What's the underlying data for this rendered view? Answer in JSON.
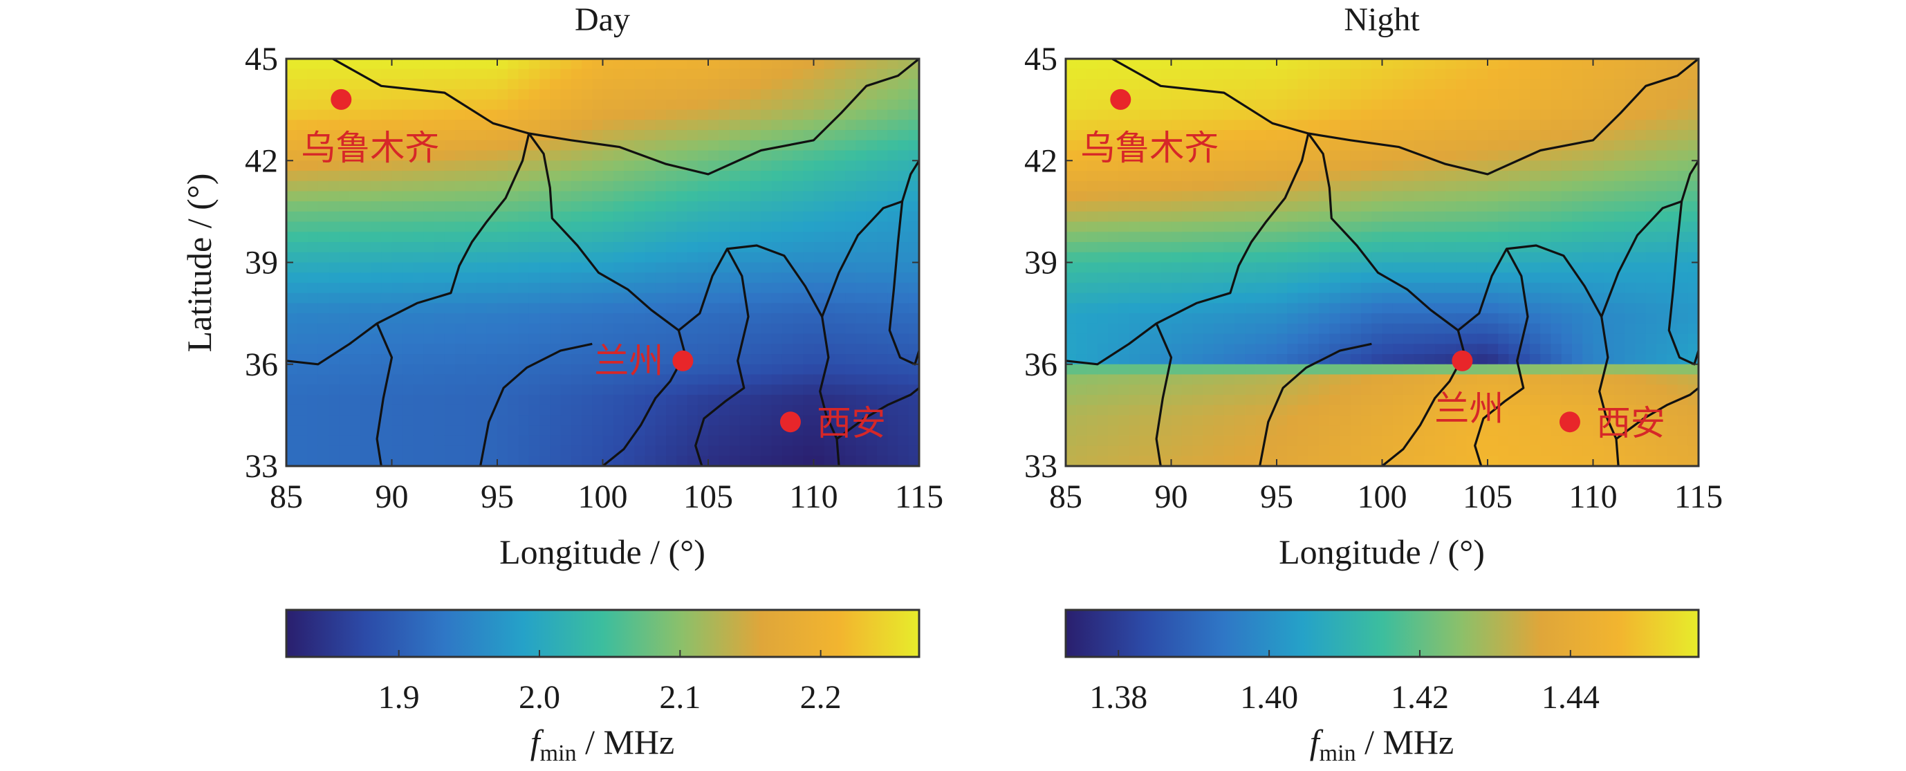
{
  "chart_data": [
    {
      "type": "heatmap",
      "title": "Day",
      "xlabel": "Longitude / (°)",
      "ylabel": "Latitude / (°)",
      "xlim": [
        85,
        115
      ],
      "ylim": [
        33,
        45
      ],
      "xticks": [
        "85",
        "90",
        "95",
        "100",
        "105",
        "110",
        "115"
      ],
      "yticks": [
        "33",
        "36",
        "39",
        "42",
        "45"
      ],
      "colorbar": {
        "label_italic": "f",
        "label_sub": "min",
        "label_rest": " / MHz",
        "range": [
          1.82,
          2.27
        ],
        "ticks": [
          "1.9",
          "2.0",
          "2.1",
          "2.2"
        ]
      },
      "field_rows": [
        {
          "lat": 45,
          "values": [
            [
              85,
              2.27
            ],
            [
              95,
              2.27
            ],
            [
              100,
              2.21
            ],
            [
              105,
              2.2
            ],
            [
              110,
              2.16
            ],
            [
              115,
              2.12
            ]
          ]
        },
        {
          "lat": 43.5,
          "values": [
            [
              85,
              2.24
            ],
            [
              95,
              2.22
            ],
            [
              100,
              2.17
            ],
            [
              105,
              2.15
            ],
            [
              110,
              2.12
            ],
            [
              115,
              2.08
            ]
          ]
        },
        {
          "lat": 42,
          "values": [
            [
              85,
              2.17
            ],
            [
              95,
              2.14
            ],
            [
              100,
              2.11
            ],
            [
              105,
              2.08
            ],
            [
              110,
              2.05
            ],
            [
              115,
              2.02
            ]
          ]
        },
        {
          "lat": 40.5,
          "values": [
            [
              85,
              2.08
            ],
            [
              95,
              2.07
            ],
            [
              100,
              2.05
            ],
            [
              105,
              2.02
            ],
            [
              110,
              2.0
            ],
            [
              115,
              1.98
            ]
          ]
        },
        {
          "lat": 39,
          "values": [
            [
              85,
              2.01
            ],
            [
              95,
              2.0
            ],
            [
              100,
              1.99
            ],
            [
              105,
              1.97
            ],
            [
              110,
              1.96
            ],
            [
              115,
              1.96
            ]
          ]
        },
        {
          "lat": 37.5,
          "values": [
            [
              85,
              1.95
            ],
            [
              95,
              1.94
            ],
            [
              100,
              1.93
            ],
            [
              105,
              1.92
            ],
            [
              110,
              1.91
            ],
            [
              115,
              1.92
            ]
          ]
        },
        {
          "lat": 36,
          "values": [
            [
              85,
              1.93
            ],
            [
              95,
              1.92
            ],
            [
              100,
              1.91
            ],
            [
              105,
              1.9
            ],
            [
              110,
              1.88
            ],
            [
              115,
              1.89
            ]
          ]
        },
        {
          "lat": 35,
          "values": [
            [
              85,
              1.92
            ],
            [
              95,
              1.91
            ],
            [
              100,
              1.89
            ],
            [
              105,
              1.86
            ],
            [
              110,
              1.84
            ],
            [
              115,
              1.86
            ]
          ]
        },
        {
          "lat": 33,
          "values": [
            [
              85,
              1.92
            ],
            [
              95,
              1.91
            ],
            [
              100,
              1.88
            ],
            [
              105,
              1.84
            ],
            [
              110,
              1.82
            ],
            [
              115,
              1.85
            ]
          ]
        }
      ]
    },
    {
      "type": "heatmap",
      "title": "Night",
      "xlabel": "Longitude / (°)",
      "ylabel": "",
      "xlim": [
        85,
        115
      ],
      "ylim": [
        33,
        45
      ],
      "xticks": [
        "85",
        "90",
        "95",
        "100",
        "105",
        "110",
        "115"
      ],
      "yticks": [
        "33",
        "36",
        "39",
        "42",
        "45"
      ],
      "colorbar": {
        "label_italic": "f",
        "label_sub": "min",
        "label_rest": " / MHz",
        "range": [
          1.373,
          1.457
        ],
        "ticks": [
          "1.38",
          "1.40",
          "1.42",
          "1.44"
        ]
      },
      "field_rows": [
        {
          "lat": 45,
          "values": [
            [
              85,
              1.457
            ],
            [
              95,
              1.456
            ],
            [
              100,
              1.452
            ],
            [
              105,
              1.448
            ],
            [
              110,
              1.443
            ],
            [
              115,
              1.438
            ]
          ]
        },
        {
          "lat": 43.5,
          "values": [
            [
              85,
              1.454
            ],
            [
              95,
              1.451
            ],
            [
              100,
              1.447
            ],
            [
              105,
              1.444
            ],
            [
              110,
              1.44
            ],
            [
              115,
              1.434
            ]
          ]
        },
        {
          "lat": 42,
          "values": [
            [
              85,
              1.446
            ],
            [
              95,
              1.441
            ],
            [
              100,
              1.437
            ],
            [
              105,
              1.434
            ],
            [
              110,
              1.43
            ],
            [
              115,
              1.425
            ]
          ]
        },
        {
          "lat": 40.5,
          "values": [
            [
              85,
              1.432
            ],
            [
              95,
              1.428
            ],
            [
              100,
              1.424
            ],
            [
              105,
              1.422
            ],
            [
              110,
              1.418
            ],
            [
              115,
              1.415
            ]
          ]
        },
        {
          "lat": 39,
          "values": [
            [
              85,
              1.415
            ],
            [
              95,
              1.412
            ],
            [
              100,
              1.408
            ],
            [
              105,
              1.408
            ],
            [
              110,
              1.406
            ],
            [
              115,
              1.405
            ]
          ]
        },
        {
          "lat": 37.5,
          "values": [
            [
              85,
              1.405
            ],
            [
              95,
              1.4
            ],
            [
              100,
              1.392
            ],
            [
              105,
              1.392
            ],
            [
              110,
              1.398
            ],
            [
              115,
              1.402
            ]
          ]
        },
        {
          "lat": 36,
          "values": [
            [
              85,
              1.405
            ],
            [
              95,
              1.392
            ],
            [
              100,
              1.381
            ],
            [
              105,
              1.376
            ],
            [
              110,
              1.397
            ],
            [
              115,
              1.405
            ]
          ]
        },
        {
          "lat": 35.8,
          "values": [
            [
              85,
              1.425
            ],
            [
              95,
              1.43
            ],
            [
              100,
              1.436
            ],
            [
              105,
              1.44
            ],
            [
              110,
              1.437
            ],
            [
              115,
              1.432
            ]
          ]
        },
        {
          "lat": 34.5,
          "values": [
            [
              85,
              1.43
            ],
            [
              95,
              1.435
            ],
            [
              100,
              1.44
            ],
            [
              105,
              1.446
            ],
            [
              110,
              1.443
            ],
            [
              115,
              1.437
            ]
          ]
        },
        {
          "lat": 33,
          "values": [
            [
              85,
              1.432
            ],
            [
              95,
              1.437
            ],
            [
              100,
              1.442
            ],
            [
              105,
              1.447
            ],
            [
              110,
              1.445
            ],
            [
              115,
              1.44
            ]
          ]
        }
      ]
    }
  ],
  "cities": [
    {
      "name": "乌鲁木齐",
      "lon": 87.6,
      "lat": 43.8
    },
    {
      "name": "兰州",
      "lon": 103.8,
      "lat": 36.1
    },
    {
      "name": "西安",
      "lon": 108.9,
      "lat": 34.3
    }
  ],
  "colors": {
    "marker": "#e8262a",
    "label": "#d62728",
    "colormap": [
      "#2a1f6e",
      "#2c4ba8",
      "#2f77c6",
      "#25a2c8",
      "#3cbe9e",
      "#8cc06a",
      "#dfa63a",
      "#f2b52f",
      "#e7ec2b"
    ]
  },
  "borders": [
    [
      [
        87.2,
        45
      ],
      [
        89.5,
        44.2
      ],
      [
        92.5,
        44.0
      ],
      [
        94.8,
        43.1
      ],
      [
        96.5,
        42.8
      ],
      [
        98.5,
        42.6
      ],
      [
        100.8,
        42.4
      ],
      [
        103.0,
        41.9
      ],
      [
        105.0,
        41.6
      ],
      [
        107.5,
        42.3
      ],
      [
        110.0,
        42.6
      ],
      [
        111.3,
        43.4
      ],
      [
        112.5,
        44.2
      ],
      [
        114.0,
        44.5
      ],
      [
        115,
        45
      ]
    ],
    [
      [
        96.5,
        42.8
      ],
      [
        96.2,
        42.0
      ],
      [
        95.4,
        40.9
      ],
      [
        94.5,
        40.2
      ],
      [
        93.8,
        39.6
      ],
      [
        93.2,
        38.9
      ],
      [
        92.8,
        38.1
      ],
      [
        91.2,
        37.8
      ],
      [
        89.3,
        37.2
      ],
      [
        88.0,
        36.6
      ],
      [
        86.5,
        36.0
      ],
      [
        85,
        36.1
      ]
    ],
    [
      [
        96.5,
        42.8
      ],
      [
        97.2,
        42.2
      ],
      [
        97.5,
        41.2
      ],
      [
        97.6,
        40.3
      ],
      [
        98.8,
        39.5
      ],
      [
        99.8,
        38.7
      ],
      [
        101.2,
        38.2
      ],
      [
        102.3,
        37.6
      ],
      [
        103.6,
        37.0
      ],
      [
        103.9,
        36.3
      ],
      [
        103.2,
        35.5
      ],
      [
        102.5,
        35.0
      ],
      [
        101.8,
        34.2
      ],
      [
        101.0,
        33.5
      ],
      [
        100.0,
        33
      ]
    ],
    [
      [
        89.3,
        37.2
      ],
      [
        90.0,
        36.2
      ],
      [
        89.6,
        35.0
      ],
      [
        89.3,
        33.8
      ],
      [
        89.5,
        33
      ]
    ],
    [
      [
        94.2,
        33
      ],
      [
        94.6,
        34.3
      ],
      [
        95.3,
        35.3
      ],
      [
        96.4,
        35.9
      ],
      [
        98.0,
        36.4
      ],
      [
        99.5,
        36.6
      ]
    ],
    [
      [
        103.6,
        37.0
      ],
      [
        104.6,
        37.5
      ],
      [
        105.2,
        38.6
      ],
      [
        105.9,
        39.4
      ],
      [
        106.6,
        38.6
      ],
      [
        106.9,
        37.4
      ],
      [
        106.4,
        36.1
      ],
      [
        106.7,
        35.3
      ],
      [
        105.8,
        34.9
      ],
      [
        104.8,
        34.4
      ],
      [
        104.4,
        33.6
      ],
      [
        104.7,
        33
      ]
    ],
    [
      [
        105.9,
        39.4
      ],
      [
        107.3,
        39.5
      ],
      [
        108.6,
        39.2
      ],
      [
        109.6,
        38.3
      ],
      [
        110.4,
        37.4
      ],
      [
        110.7,
        36.2
      ],
      [
        110.3,
        35.2
      ],
      [
        110.6,
        34.5
      ],
      [
        111.1,
        33.8
      ],
      [
        111.2,
        33
      ]
    ],
    [
      [
        110.4,
        37.4
      ],
      [
        111.2,
        38.7
      ],
      [
        112.1,
        39.8
      ],
      [
        113.3,
        40.6
      ],
      [
        114.2,
        40.8
      ],
      [
        114.6,
        41.6
      ],
      [
        115,
        42.0
      ]
    ],
    [
      [
        111.1,
        33.8
      ],
      [
        112.4,
        34.4
      ],
      [
        113.5,
        34.8
      ],
      [
        114.6,
        35.1
      ],
      [
        115,
        35.3
      ]
    ],
    [
      [
        114.2,
        40.8
      ],
      [
        114.0,
        39.6
      ],
      [
        113.8,
        38.2
      ],
      [
        113.6,
        37.0
      ],
      [
        114.1,
        36.2
      ],
      [
        114.8,
        36.0
      ],
      [
        115,
        36.4
      ]
    ]
  ]
}
